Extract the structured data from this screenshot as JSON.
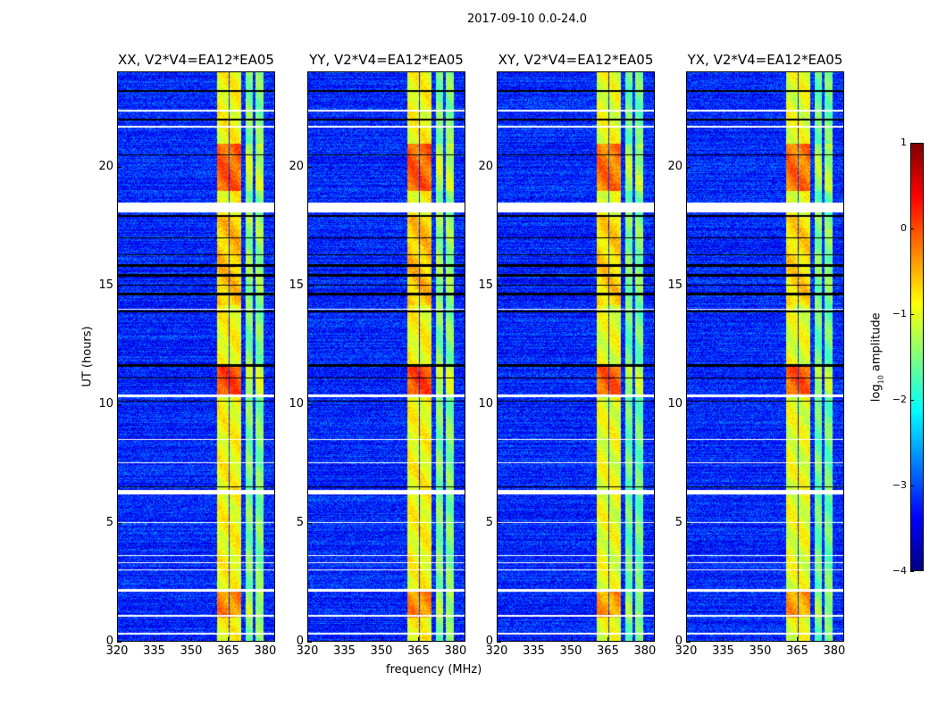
{
  "chart_data": {
    "type": "heatmap",
    "title": "2017-09-10 0.0-24.0",
    "xlabel": "frequency (MHz)",
    "ylabel": "UT (hours)",
    "xlim": [
      320,
      384
    ],
    "ylim": [
      0,
      24
    ],
    "xticks": [
      320,
      335,
      350,
      365,
      380
    ],
    "yticks": [
      0,
      5,
      10,
      15,
      20
    ],
    "panels": [
      {
        "title": "XX, V2*V4=EA12*EA05"
      },
      {
        "title": "YY, V2*V4=EA12*EA05"
      },
      {
        "title": "XY, V2*V4=EA12*EA05"
      },
      {
        "title": "YX, V2*V4=EA12*EA05"
      }
    ],
    "colorbar": {
      "label": "log10 amplitude",
      "label_main": "log",
      "label_sub": "10",
      "label_rest": " amplitude",
      "range": [
        -4,
        1
      ],
      "ticks": [
        1,
        0,
        -1,
        -2,
        -3,
        -4
      ],
      "tick_labels": [
        "1",
        "0",
        "−1",
        "−2",
        "−3",
        "−4"
      ],
      "colormap": "jet"
    },
    "background_level": -3.2,
    "bands": [
      {
        "f0": 360.5,
        "f1": 365.0,
        "level": -0.9
      },
      {
        "f0": 365.5,
        "f1": 370.2,
        "level": -0.9
      },
      {
        "f0": 372.0,
        "f1": 375.2,
        "level": -1.5
      },
      {
        "f0": 376.0,
        "f1": 379.6,
        "level": -1.5
      }
    ],
    "bright_intervals": [
      {
        "t0": 19.0,
        "t1": 21.0,
        "boost": 0.8
      },
      {
        "t0": 10.4,
        "t1": 11.6,
        "boost": 0.9
      },
      {
        "t0": 1.0,
        "t1": 2.1,
        "boost": 0.6
      },
      {
        "t0": 14.2,
        "t1": 18.0,
        "boost": 0.3
      }
    ],
    "flagged_white_hours": [
      [
        18.1,
        18.5
      ],
      [
        10.3,
        10.4
      ],
      [
        6.2,
        6.4
      ],
      [
        22.35,
        22.45
      ],
      [
        21.7,
        21.75
      ],
      [
        14.0,
        14.05
      ],
      [
        3.6,
        3.65
      ],
      [
        3.3,
        3.35
      ],
      [
        3.0,
        3.05
      ],
      [
        2.1,
        2.2
      ],
      [
        1.05,
        1.1
      ],
      [
        0.3,
        0.35
      ],
      [
        8.5,
        8.55
      ],
      [
        7.5,
        7.55
      ],
      [
        5.0,
        5.03
      ]
    ],
    "flagged_black_hours": [
      [
        17.9,
        18.0
      ],
      [
        17.0,
        17.05
      ],
      [
        16.3,
        16.35
      ],
      [
        15.8,
        15.9
      ],
      [
        15.4,
        15.5
      ],
      [
        15.0,
        15.05
      ],
      [
        14.6,
        14.7
      ],
      [
        13.9,
        13.95
      ],
      [
        11.6,
        11.7
      ],
      [
        11.1,
        11.15
      ],
      [
        10.1,
        10.15
      ],
      [
        6.5,
        6.55
      ],
      [
        20.5,
        20.55
      ],
      [
        22.0,
        22.05
      ],
      [
        23.2,
        23.25
      ]
    ]
  }
}
